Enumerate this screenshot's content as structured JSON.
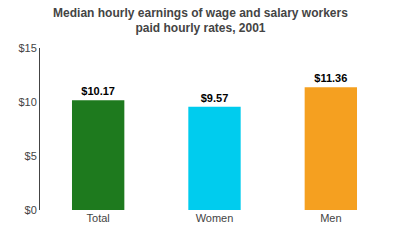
{
  "chart_data": {
    "type": "bar",
    "title": "Median hourly earnings of wage and salary workers",
    "subtitle": "paid hourly rates, 2001",
    "categories": [
      "Total",
      "Women",
      "Men"
    ],
    "values": [
      10.17,
      9.57,
      11.36
    ],
    "value_labels": [
      "$10.17",
      "$9.57",
      "$11.36"
    ],
    "colors": [
      "#1e7a1e",
      "#00ccee",
      "#f5a020"
    ],
    "ylim": [
      0,
      15
    ],
    "yticks": [
      {
        "value": 0,
        "label": "$0"
      },
      {
        "value": 5,
        "label": "$5"
      },
      {
        "value": 10,
        "label": "$10"
      },
      {
        "value": 15,
        "label": "$15"
      }
    ],
    "grid": false,
    "data_labels": true
  }
}
